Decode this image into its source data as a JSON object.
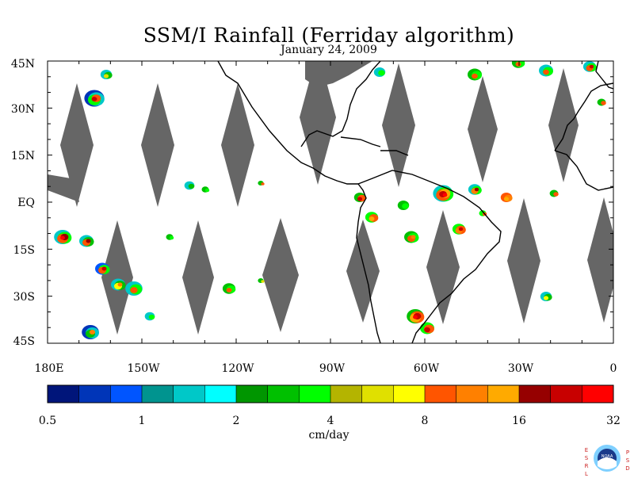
{
  "title": "SSM/I Rainfall (Ferriday algorithm)",
  "subtitle": "January 24, 2009",
  "map": {
    "lat_labels": [
      "45N",
      "30N",
      "15N",
      "EQ",
      "15S",
      "30S",
      "45S"
    ],
    "lat_values": [
      45,
      30,
      15,
      0,
      -15,
      -30,
      -45
    ],
    "lon_labels": [
      "180E",
      "150W",
      "120W",
      "90W",
      "60W",
      "30W",
      "0"
    ],
    "lon_values": [
      -180,
      -150,
      -120,
      -90,
      -60,
      -30,
      0
    ],
    "extent": {
      "lon": [
        -180,
        0
      ],
      "lat": [
        -45,
        45
      ]
    },
    "no_data_color": "#666666"
  },
  "colorbar": {
    "colors": [
      "#00157a",
      "#0035b8",
      "#0055ff",
      "#00948f",
      "#00c8c8",
      "#00ffff",
      "#009600",
      "#00c000",
      "#00ff00",
      "#b4b400",
      "#e0e000",
      "#ffff00",
      "#ff5500",
      "#ff8000",
      "#ffaa00",
      "#960000",
      "#c80000",
      "#ff0000"
    ],
    "tick_labels": [
      "0.5",
      "1",
      "2",
      "4",
      "8",
      "16",
      "32"
    ],
    "unit": "cm/day"
  },
  "logo": {
    "left_letters": [
      "E",
      "S",
      "R",
      "L"
    ],
    "right_letters": [
      "P",
      "S",
      "D"
    ],
    "text": "NOAA"
  }
}
